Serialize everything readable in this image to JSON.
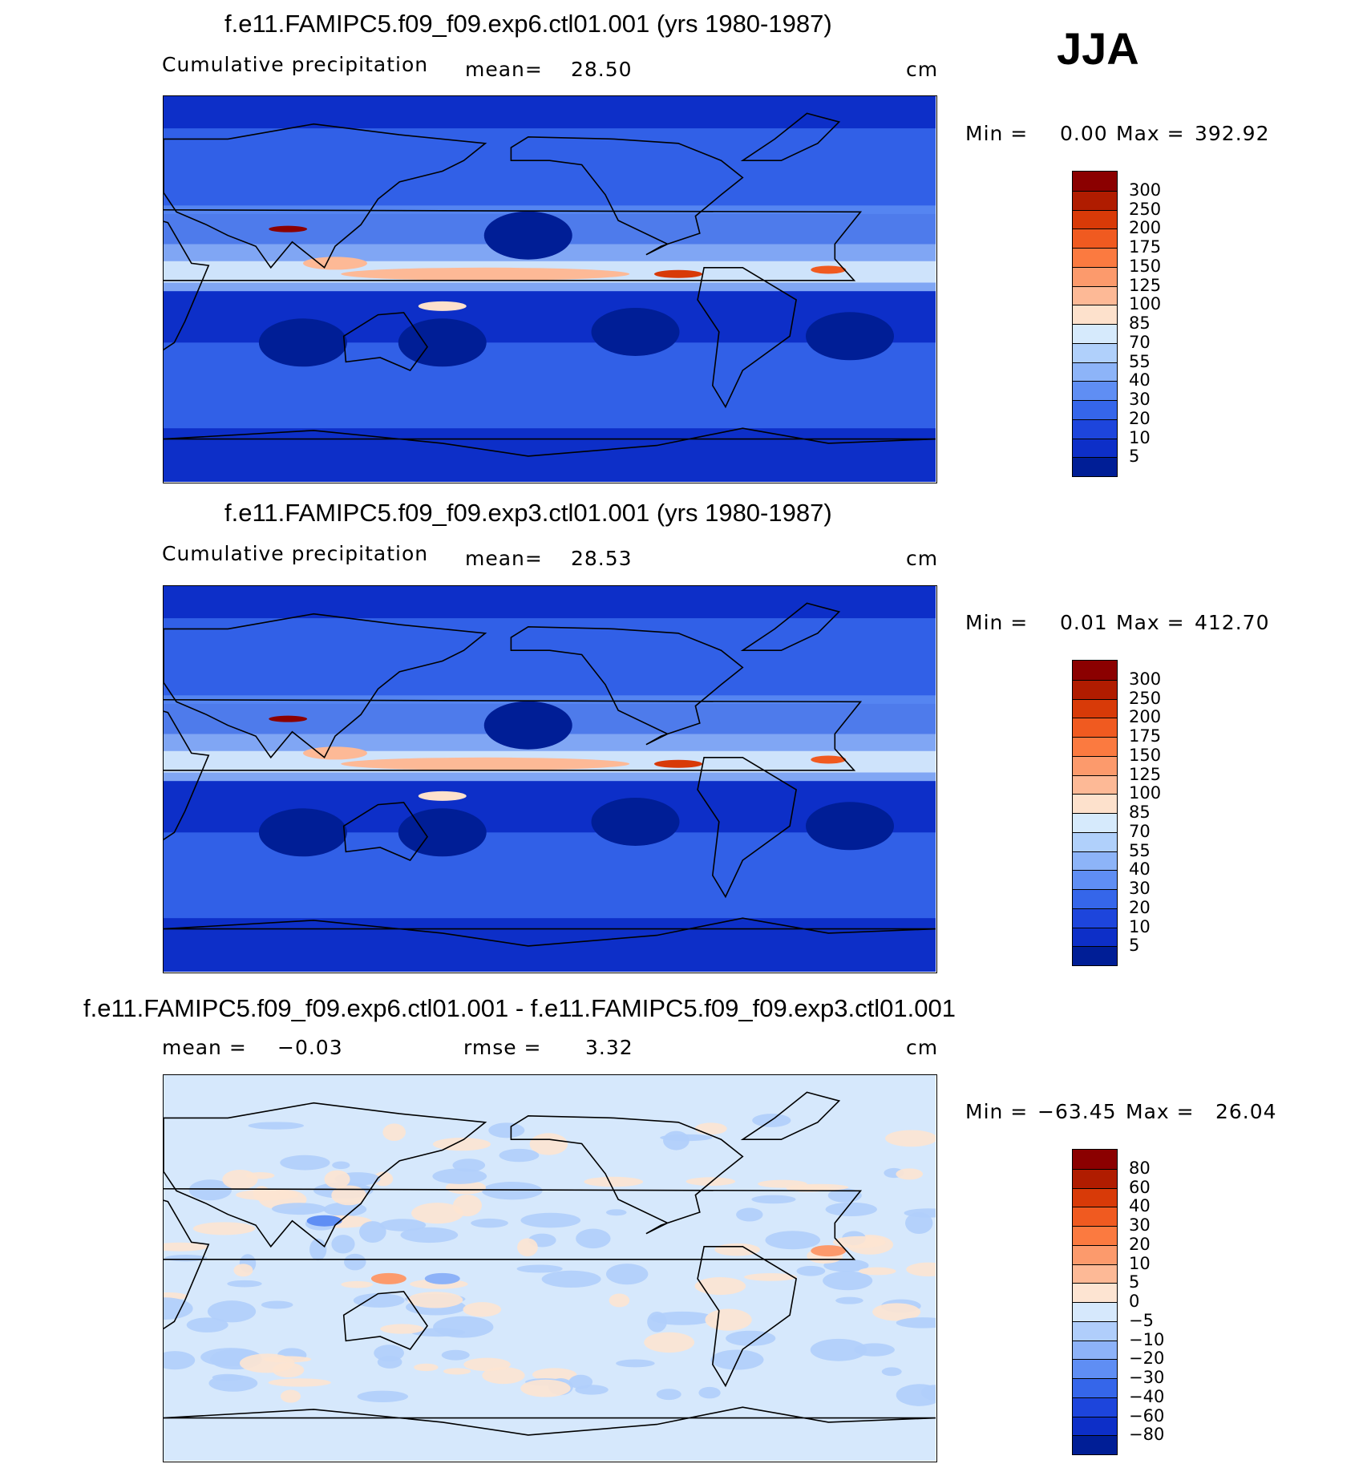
{
  "season": "JJA",
  "chart_data": [
    {
      "type": "heatmap",
      "title": "f.e11.FAMIPC5.f09_f09.exp6.ctl01.001 (yrs 1980-1987)",
      "subtitle_left": "Cumulative precipitation",
      "mean_label": "mean=",
      "mean_value": "28.50",
      "units": "cm",
      "min_label": "Min =",
      "min_value": "0.00",
      "max_label": "Max =",
      "max_value": "392.92",
      "colorbar_levels": [
        "300",
        "250",
        "200",
        "175",
        "150",
        "125",
        "100",
        "85",
        "70",
        "55",
        "40",
        "30",
        "20",
        "10",
        "5"
      ],
      "colorbar_colors": [
        "#8b0000",
        "#b01c00",
        "#d83a08",
        "#f05a20",
        "#fb7a40",
        "#fc9a6c",
        "#fdb996",
        "#fde1cc",
        "#d6eafc",
        "#b0d0fb",
        "#8db4f8",
        "#5f8ef4",
        "#3566ea",
        "#1d45dc",
        "#0d2fc8",
        "#001e96"
      ]
    },
    {
      "type": "heatmap",
      "title": "f.e11.FAMIPC5.f09_f09.exp3.ctl01.001 (yrs 1980-1987)",
      "subtitle_left": "Cumulative precipitation",
      "mean_label": "mean=",
      "mean_value": "28.53",
      "units": "cm",
      "min_label": "Min =",
      "min_value": "0.01",
      "max_label": "Max =",
      "max_value": "412.70",
      "colorbar_levels": [
        "300",
        "250",
        "200",
        "175",
        "150",
        "125",
        "100",
        "85",
        "70",
        "55",
        "40",
        "30",
        "20",
        "10",
        "5"
      ],
      "colorbar_colors": [
        "#8b0000",
        "#b01c00",
        "#d83a08",
        "#f05a20",
        "#fb7a40",
        "#fc9a6c",
        "#fdb996",
        "#fde1cc",
        "#d6eafc",
        "#b0d0fb",
        "#8db4f8",
        "#5f8ef4",
        "#3566ea",
        "#1d45dc",
        "#0d2fc8",
        "#001e96"
      ]
    },
    {
      "type": "heatmap",
      "title": "f.e11.FAMIPC5.f09_f09.exp6.ctl01.001 - f.e11.FAMIPC5.f09_f09.exp3.ctl01.001",
      "mean_label": "mean =",
      "mean_value": "−0.03",
      "rmse_label": "rmse =",
      "rmse_value": "3.32",
      "units": "cm",
      "min_label": "Min =",
      "min_value": "−63.45",
      "max_label": "Max =",
      "max_value": "26.04",
      "colorbar_levels": [
        "80",
        "60",
        "40",
        "30",
        "20",
        "10",
        "5",
        "0",
        "−5",
        "−10",
        "−20",
        "−30",
        "−40",
        "−60",
        "−80"
      ],
      "colorbar_colors": [
        "#8b0000",
        "#b01c00",
        "#d83a08",
        "#f05a20",
        "#fb7a40",
        "#fc9a6c",
        "#fdb996",
        "#fde4d2",
        "#d6e8fc",
        "#b0cefb",
        "#8db2f8",
        "#5f8ef4",
        "#3566ea",
        "#1d45dc",
        "#0d2fc8",
        "#001e96"
      ]
    }
  ]
}
